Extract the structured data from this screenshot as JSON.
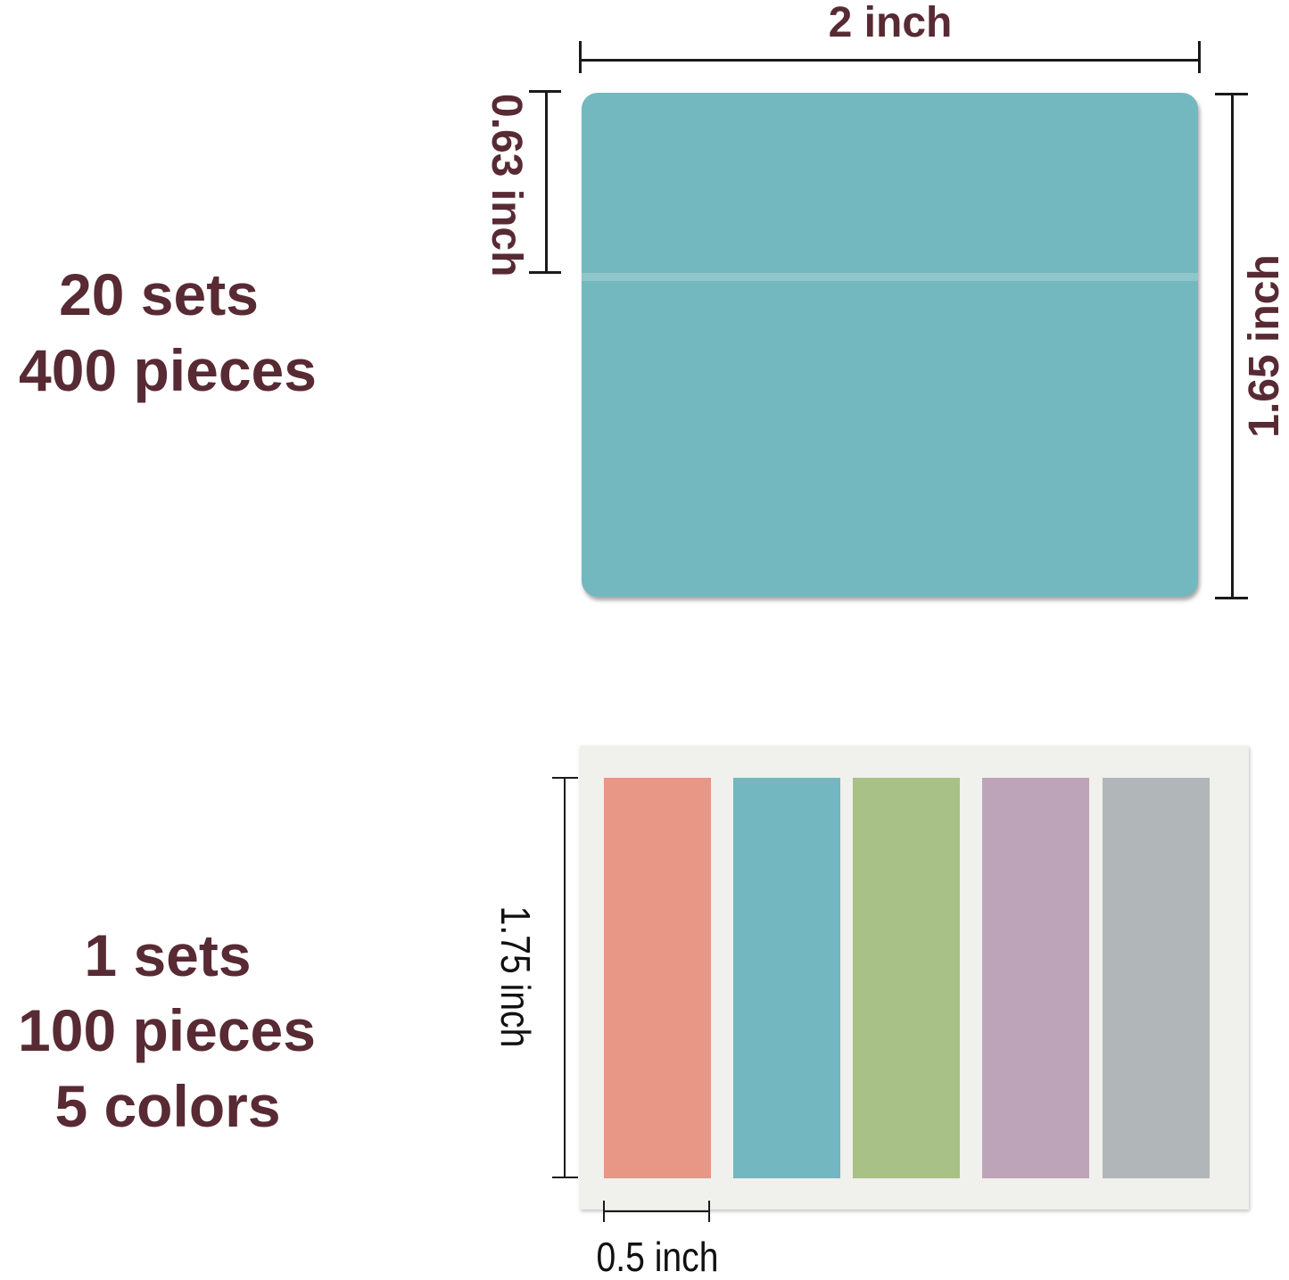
{
  "top_section": {
    "lines": [
      "20 sets",
      "400 pieces"
    ],
    "width_label": "2 inch",
    "tab_height_label": "0.63 inch",
    "height_label": "1.65 inch",
    "color": "#73b8be"
  },
  "bottom_section": {
    "lines": [
      "1 sets",
      "100 pieces",
      "5 colors"
    ],
    "height_label": "1.75 inch",
    "width_label": "0.5 inch",
    "backing_color": "#f0f0ec",
    "colors": [
      "#e89686",
      "#73b8c0",
      "#a8c186",
      "#bea4b8",
      "#b1b6b8"
    ]
  },
  "text_color": "#582a33"
}
